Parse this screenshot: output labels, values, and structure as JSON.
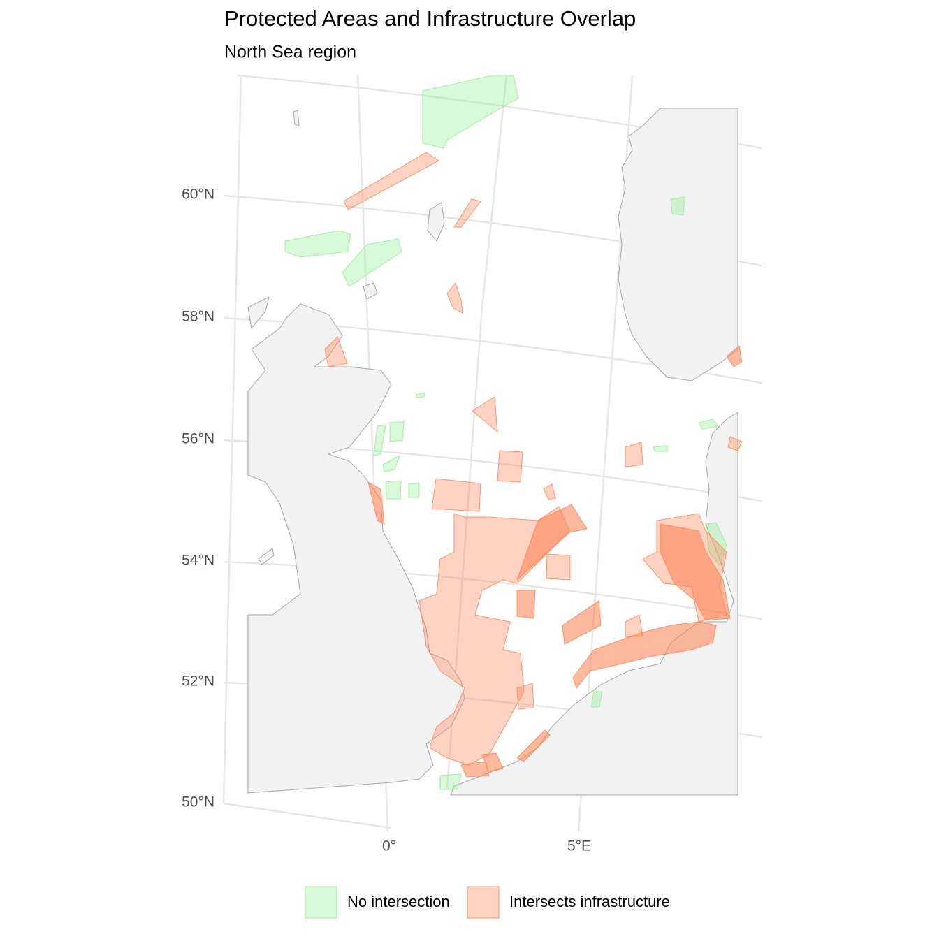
{
  "title": "Protected Areas and Infrastructure Overlap",
  "subtitle": "North Sea region",
  "map": {
    "lat_labels": [
      "60°N",
      "58°N",
      "56°N",
      "54°N",
      "52°N",
      "50°N"
    ],
    "lon_labels": [
      "0°",
      "5°E"
    ]
  },
  "legend": [
    {
      "label": "No intersection",
      "color": "#90ee90"
    },
    {
      "label": "Intersects infrastructure",
      "color": "#ff7f50"
    }
  ]
}
